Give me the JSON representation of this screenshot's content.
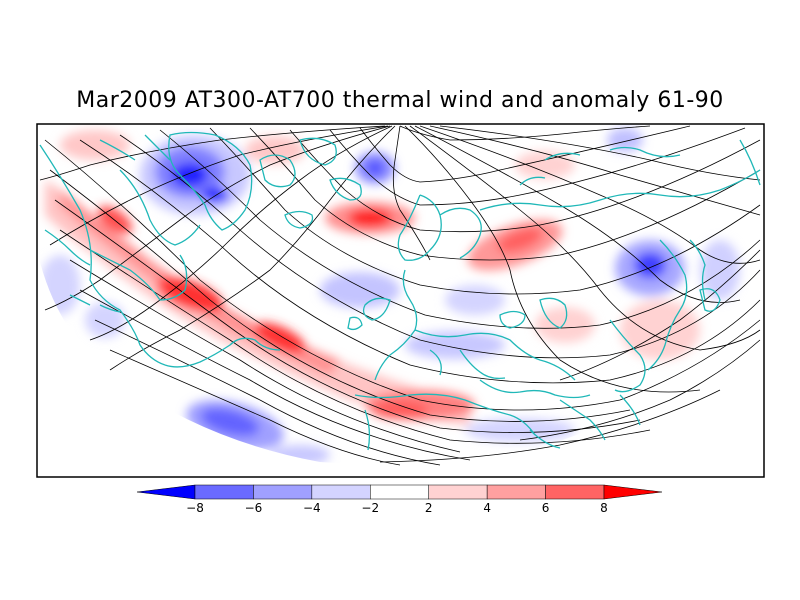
{
  "title": "Mar2009 AT300-AT700 thermal wind and anomaly 61-90",
  "colorbar": {
    "tick_labels": [
      "-8",
      "-6",
      "-4",
      "-2",
      "2",
      "4",
      "6",
      "8"
    ],
    "colors": [
      "#0000ff",
      "#6a6aff",
      "#a0a0ff",
      "#d4d4ff",
      "#ffffff",
      "#ffd2d2",
      "#ffa0a0",
      "#ff6464",
      "#ff0000"
    ]
  },
  "colors": {
    "coastline": "#20b8b8",
    "streamline": "#000000",
    "frame": "#000000"
  }
}
